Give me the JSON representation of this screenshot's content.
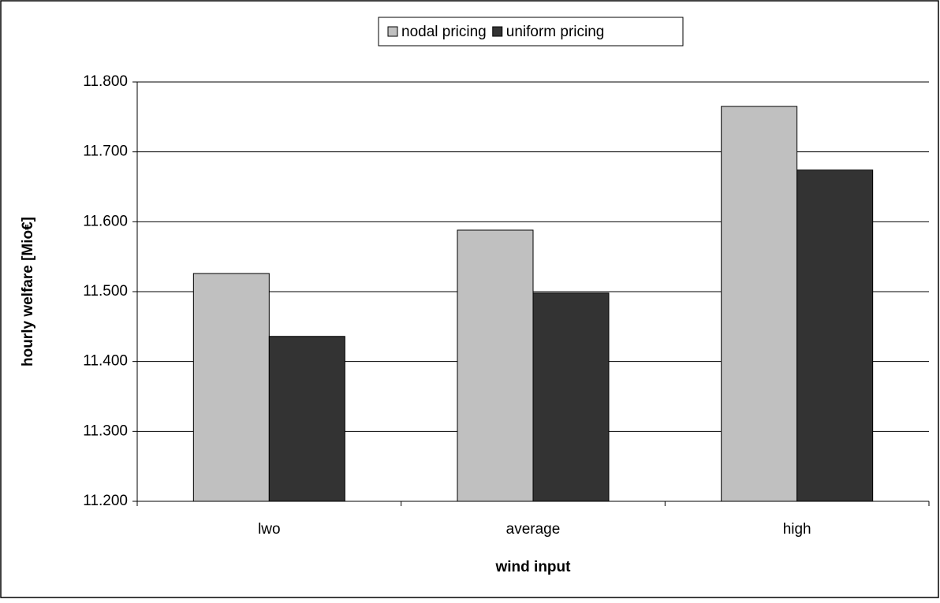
{
  "chart_data": {
    "type": "bar",
    "x_label": "wind input",
    "y_label": "hourly welfare [Mio€]",
    "categories": [
      "lwo",
      "average",
      "high"
    ],
    "series": [
      {
        "name": "nodal pricing",
        "color": "#c0c0c0",
        "values": [
          11.526,
          11.588,
          11.765
        ]
      },
      {
        "name": "uniform pricing",
        "color": "#333333",
        "values": [
          11.436,
          11.498,
          11.674
        ]
      }
    ],
    "ylim": [
      11.2,
      11.8
    ],
    "yticks": [
      {
        "value": 11.2,
        "label": "11.200"
      },
      {
        "value": 11.3,
        "label": "11.300"
      },
      {
        "value": 11.4,
        "label": "11.400"
      },
      {
        "value": 11.5,
        "label": "11.500"
      },
      {
        "value": 11.6,
        "label": "11.600"
      },
      {
        "value": 11.7,
        "label": "11.700"
      },
      {
        "value": 11.8,
        "label": "11.800"
      }
    ],
    "grid": true,
    "legend": "top"
  }
}
